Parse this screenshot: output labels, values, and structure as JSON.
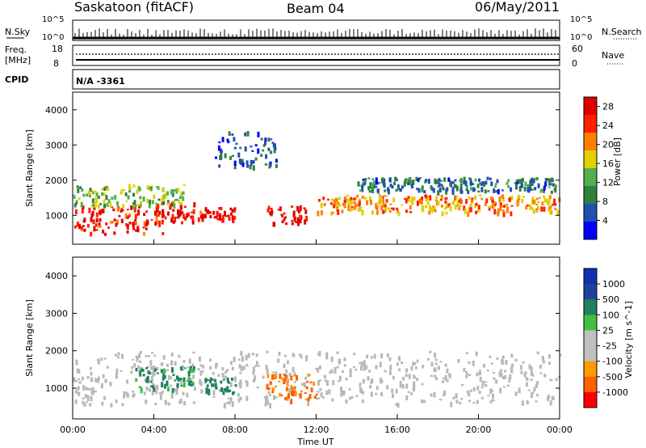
{
  "header": {
    "station": "Saskatoon (fitACF)",
    "beam": "Beam 04",
    "date": "06/May/2011"
  },
  "strips": {
    "nsky_label": "N.Sky",
    "nsky_ticks": [
      "10^5",
      "10^0"
    ],
    "nsearch_label": "N.Search",
    "nsearch_ticks": [
      "10^5",
      "10^0"
    ],
    "freq_label": "Freq.",
    "freq_unit": "[MHz]",
    "freq_ticks": [
      "18",
      "8"
    ],
    "nave_label": "Nave",
    "nave_ticks": [
      "60",
      "0"
    ],
    "cpid_label": "CPID",
    "cpid_value": "N/A -3361"
  },
  "colors": {
    "power": [
      "#0000ff",
      "#2050b0",
      "#308040",
      "#50b050",
      "#e0d000",
      "#ff8000",
      "#ff2000",
      "#e00000"
    ],
    "velocity": [
      "#ff0000",
      "#ff6000",
      "#ff9a00",
      "#c0c0c0",
      "#c0c0c0",
      "#40c040",
      "#208060",
      "#2040a0",
      "#1030b0"
    ],
    "ground_scatter": "#b8b8b8"
  },
  "chart_data": [
    {
      "type": "heatmap",
      "name": "power",
      "ylabel": "Slant Range [km]",
      "yticks": [
        "1000",
        "2000",
        "3000",
        "4000"
      ],
      "ylim": [
        180,
        4500
      ],
      "colorbar_label": "Power [dB]",
      "colorbar_ticks": [
        "4",
        "8",
        "12",
        "16",
        "20",
        "24",
        "28"
      ],
      "colorbar_range": [
        0,
        30
      ],
      "features": [
        {
          "t0": 0.0,
          "t1": 4.5,
          "r0": 500,
          "r1": 1300,
          "power": 26
        },
        {
          "t0": 0.0,
          "t1": 5.5,
          "r0": 1300,
          "r1": 1900,
          "power": 14
        },
        {
          "t0": 4.0,
          "t1": 6.0,
          "r0": 800,
          "r1": 1400,
          "power": 28
        },
        {
          "t0": 6.0,
          "t1": 8.0,
          "r0": 900,
          "r1": 1250,
          "power": 27
        },
        {
          "t0": 9.5,
          "t1": 11.5,
          "r0": 800,
          "r1": 1300,
          "power": 28
        },
        {
          "t0": 12.0,
          "t1": 24.0,
          "r0": 1100,
          "r1": 1600,
          "power": 20
        },
        {
          "t0": 14.0,
          "t1": 24.0,
          "r0": 1700,
          "r1": 2100,
          "power": 8
        },
        {
          "t0": 7.0,
          "t1": 10.0,
          "r0": 2400,
          "r1": 3400,
          "power": 6
        }
      ]
    },
    {
      "type": "heatmap",
      "name": "velocity",
      "ylabel": "Slant Range [km]",
      "yticks": [
        "1000",
        "2000",
        "3000",
        "4000"
      ],
      "ylim": [
        180,
        4500
      ],
      "colorbar_label": "Velocity [m s^-1]",
      "colorbar_ticks": [
        "1000",
        "500",
        "100",
        "25",
        "-25",
        "-100",
        "-500",
        "-1000"
      ],
      "xlabel": "Time UT",
      "xticks": [
        "00:00",
        "04:00",
        "08:00",
        "12:00",
        "16:00",
        "20:00",
        "00:00"
      ],
      "xlim": [
        0,
        24
      ],
      "features": [
        {
          "t0": 0.0,
          "t1": 24.0,
          "r0": 600,
          "r1": 2000,
          "velocity": 0
        },
        {
          "t0": 3.0,
          "t1": 6.0,
          "r0": 1000,
          "r1": 1600,
          "velocity": 150
        },
        {
          "t0": 6.5,
          "t1": 8.0,
          "r0": 900,
          "r1": 1300,
          "velocity": 300
        },
        {
          "t0": 9.5,
          "t1": 12.0,
          "r0": 700,
          "r1": 1400,
          "velocity": -150
        }
      ]
    }
  ]
}
